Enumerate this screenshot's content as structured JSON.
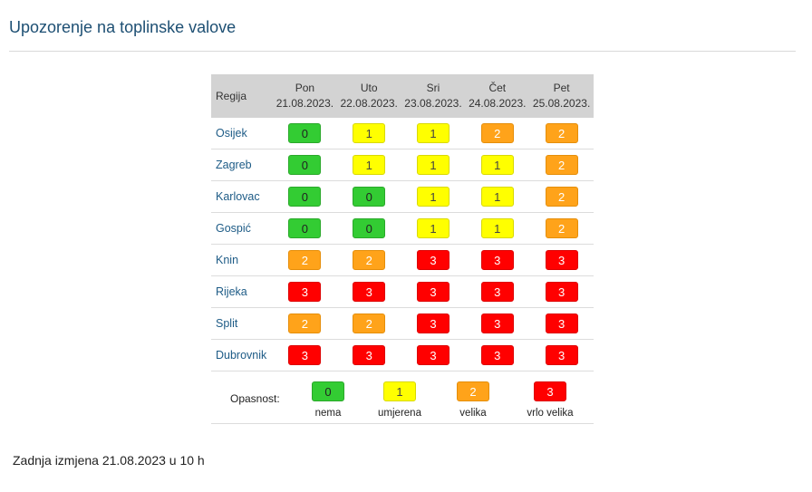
{
  "title": "Upozorenje na toplinske valove",
  "table": {
    "region_header": "Regija",
    "days": [
      {
        "name": "Pon",
        "date": "21.08.2023."
      },
      {
        "name": "Uto",
        "date": "22.08.2023."
      },
      {
        "name": "Sri",
        "date": "23.08.2023."
      },
      {
        "name": "Čet",
        "date": "24.08.2023."
      },
      {
        "name": "Pet",
        "date": "25.08.2023."
      }
    ],
    "rows": [
      {
        "region": "Osijek",
        "levels": [
          "0",
          "1",
          "1",
          "2",
          "2"
        ]
      },
      {
        "region": "Zagreb",
        "levels": [
          "0",
          "1",
          "1",
          "1",
          "2"
        ]
      },
      {
        "region": "Karlovac",
        "levels": [
          "0",
          "0",
          "1",
          "1",
          "2"
        ]
      },
      {
        "region": "Gospić",
        "levels": [
          "0",
          "0",
          "1",
          "1",
          "2"
        ]
      },
      {
        "region": "Knin",
        "levels": [
          "2",
          "2",
          "3",
          "3",
          "3"
        ]
      },
      {
        "region": "Rijeka",
        "levels": [
          "3",
          "3",
          "3",
          "3",
          "3"
        ]
      },
      {
        "region": "Split",
        "levels": [
          "2",
          "2",
          "3",
          "3",
          "3"
        ]
      },
      {
        "region": "Dubrovnik",
        "levels": [
          "3",
          "3",
          "3",
          "3",
          "3"
        ]
      }
    ]
  },
  "legend": {
    "label": "Opasnost:",
    "items": [
      {
        "level": "0",
        "text": "nema",
        "color": "#33cc33"
      },
      {
        "level": "1",
        "text": "umjerena",
        "color": "#ffff00"
      },
      {
        "level": "2",
        "text": "velika",
        "color": "#ffa31a"
      },
      {
        "level": "3",
        "text": "vrlo velika",
        "color": "#ff0000"
      }
    ]
  },
  "footer": "Zadnja izmjena 21.08.2023 u 10 h"
}
